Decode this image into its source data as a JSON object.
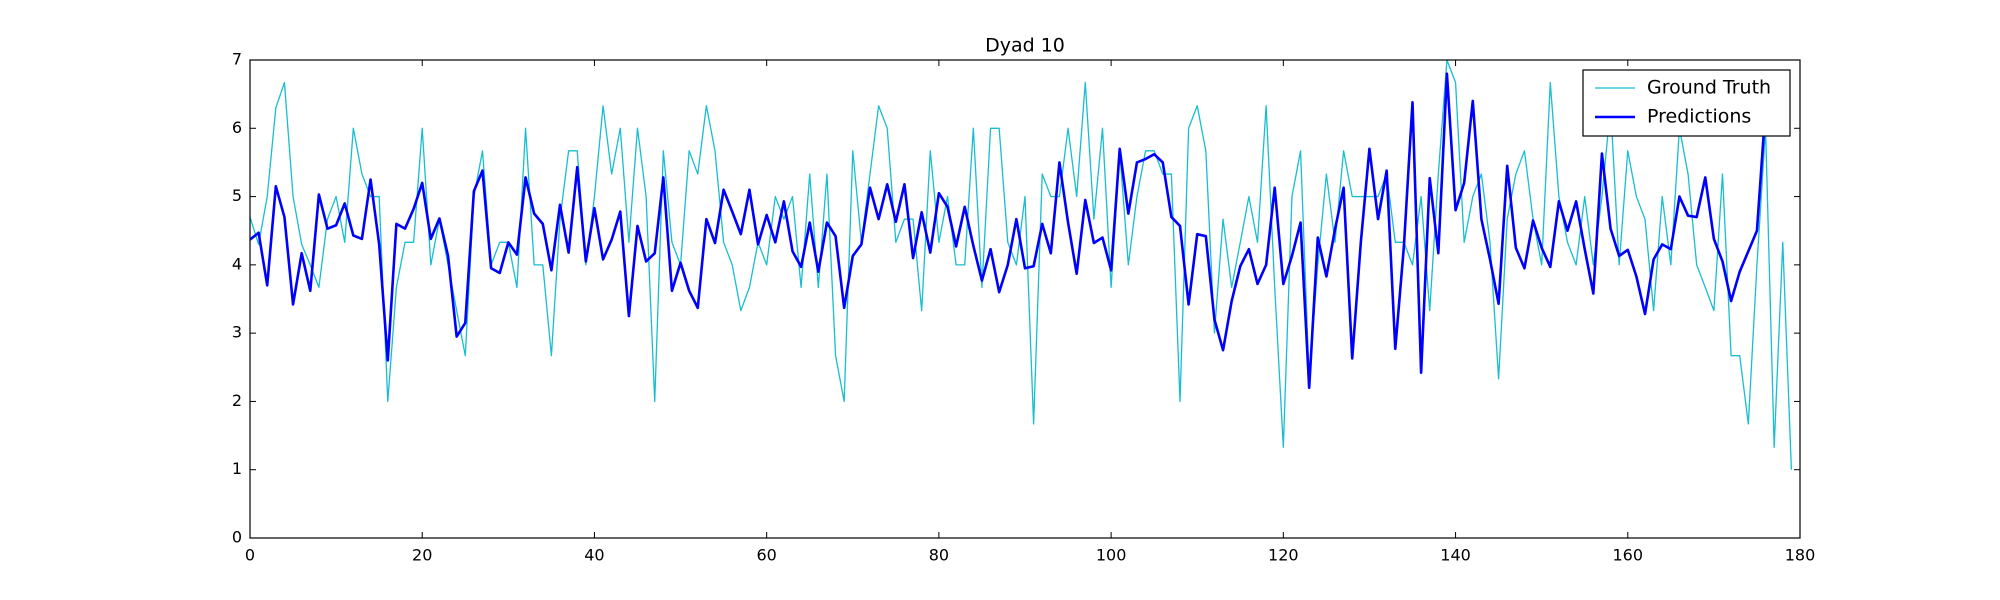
{
  "chart_data": {
    "type": "line",
    "title": "Dyad 10",
    "x": [
      0,
      1,
      2,
      3,
      4,
      5,
      6,
      7,
      8,
      9,
      10,
      11,
      12,
      13,
      14,
      15,
      16,
      17,
      18,
      19,
      20,
      21,
      22,
      23,
      24,
      25,
      26,
      27,
      28,
      29,
      30,
      31,
      32,
      33,
      34,
      35,
      36,
      37,
      38,
      39,
      40,
      41,
      42,
      43,
      44,
      45,
      46,
      47,
      48,
      49,
      50,
      51,
      52,
      53,
      54,
      55,
      56,
      57,
      58,
      59,
      60,
      61,
      62,
      63,
      64,
      65,
      66,
      67,
      68,
      69,
      70,
      71,
      72,
      73,
      74,
      75,
      76,
      77,
      78,
      79,
      80,
      81,
      82,
      83,
      84,
      85,
      86,
      87,
      88,
      89,
      90,
      91,
      92,
      93,
      94,
      95,
      96,
      97,
      98,
      99,
      100,
      101,
      102,
      103,
      104,
      105,
      106,
      107,
      108,
      109,
      110,
      111,
      112,
      113,
      114,
      115,
      116,
      117,
      118,
      119,
      120,
      121,
      122,
      123,
      124,
      125,
      126,
      127,
      128,
      129,
      130,
      131,
      132,
      133,
      134,
      135,
      136,
      137,
      138,
      139,
      140,
      141,
      142,
      143,
      144,
      145,
      146,
      147,
      148,
      149,
      150,
      151,
      152,
      153,
      154,
      155,
      156,
      157,
      158,
      159,
      160,
      161,
      162,
      163,
      164,
      165,
      166,
      167,
      168,
      169,
      170,
      171,
      172,
      173,
      174,
      175,
      176,
      177,
      178,
      179
    ],
    "series": [
      {
        "name": "Ground Truth",
        "color": "#17becf",
        "width": 1.3,
        "values": [
          4.7,
          4.3,
          5.0,
          6.3,
          6.67,
          5.0,
          4.3,
          4.0,
          3.67,
          4.67,
          5.0,
          4.33,
          6.0,
          5.33,
          5.0,
          5.0,
          2.0,
          3.67,
          4.33,
          4.33,
          6.0,
          4.0,
          4.67,
          4.0,
          3.33,
          2.67,
          5.0,
          5.67,
          4.0,
          4.33,
          4.33,
          3.67,
          6.0,
          4.0,
          4.0,
          2.67,
          4.67,
          5.67,
          5.67,
          4.0,
          5.0,
          6.33,
          5.33,
          6.0,
          4.33,
          6.0,
          5.0,
          2.0,
          5.67,
          4.33,
          4.0,
          5.67,
          5.33,
          6.33,
          5.67,
          4.33,
          4.0,
          3.33,
          3.67,
          4.33,
          4.0,
          5.0,
          4.67,
          5.0,
          3.67,
          5.33,
          3.67,
          5.33,
          2.67,
          2.0,
          5.67,
          4.33,
          5.33,
          6.33,
          6.0,
          4.33,
          4.67,
          4.67,
          3.33,
          5.67,
          4.33,
          5.0,
          4.0,
          4.0,
          6.0,
          3.67,
          6.0,
          6.0,
          4.33,
          4.0,
          5.0,
          1.67,
          5.33,
          5.0,
          5.0,
          6.0,
          5.0,
          6.67,
          4.67,
          6.0,
          3.67,
          5.67,
          4.0,
          5.0,
          5.67,
          5.67,
          5.33,
          5.33,
          2.0,
          6.0,
          6.33,
          5.67,
          3.0,
          4.67,
          3.67,
          4.33,
          5.0,
          4.33,
          6.33,
          3.67,
          1.33,
          5.0,
          5.67,
          2.33,
          4.0,
          5.33,
          4.33,
          5.67,
          5.0,
          5.0,
          5.0,
          5.0,
          5.33,
          4.33,
          4.33,
          4.0,
          5.0,
          3.33,
          5.33,
          7.0,
          6.67,
          4.33,
          5.0,
          5.33,
          4.33,
          2.33,
          4.67,
          5.33,
          5.67,
          4.67,
          4.0,
          6.67,
          5.0,
          4.33,
          4.0,
          5.0,
          4.0,
          5.0,
          6.33,
          4.0,
          5.67,
          5.0,
          4.67,
          3.33,
          5.0,
          4.0,
          6.0,
          5.33,
          4.0,
          3.67,
          3.33,
          5.33,
          2.67,
          2.67,
          1.67,
          4.0,
          6.0,
          1.33,
          4.33,
          1.0
        ]
      },
      {
        "name": "Predictions",
        "color": "#0000ff",
        "width": 2.6,
        "values": [
          4.37,
          4.47,
          3.7,
          5.15,
          4.7,
          3.42,
          4.17,
          3.62,
          5.03,
          4.53,
          4.58,
          4.9,
          4.43,
          4.38,
          5.25,
          4.3,
          2.6,
          4.6,
          4.53,
          4.82,
          5.2,
          4.38,
          4.68,
          4.13,
          2.95,
          3.15,
          5.08,
          5.38,
          3.95,
          3.88,
          4.33,
          4.15,
          5.28,
          4.75,
          4.6,
          3.92,
          4.88,
          4.18,
          5.43,
          4.05,
          4.83,
          4.08,
          4.37,
          4.78,
          3.25,
          4.57,
          4.05,
          4.17,
          5.28,
          3.62,
          4.03,
          3.62,
          3.37,
          4.67,
          4.32,
          5.1,
          4.78,
          4.45,
          5.1,
          4.3,
          4.73,
          4.33,
          4.93,
          4.2,
          3.97,
          4.62,
          3.9,
          4.62,
          4.42,
          3.37,
          4.13,
          4.3,
          5.13,
          4.67,
          5.18,
          4.63,
          5.18,
          4.1,
          4.77,
          4.18,
          5.05,
          4.85,
          4.27,
          4.85,
          4.28,
          3.77,
          4.23,
          3.6,
          4.0,
          4.67,
          3.95,
          3.98,
          4.6,
          4.17,
          5.5,
          4.62,
          3.87,
          4.95,
          4.32,
          4.4,
          3.92,
          5.7,
          4.75,
          5.5,
          5.55,
          5.62,
          5.5,
          4.7,
          4.57,
          3.42,
          4.45,
          4.42,
          3.2,
          2.75,
          3.47,
          3.98,
          4.23,
          3.72,
          4.0,
          5.13,
          3.72,
          4.13,
          4.62,
          2.2,
          4.4,
          3.83,
          4.52,
          5.13,
          2.63,
          4.33,
          5.7,
          4.67,
          5.38,
          2.77,
          4.27,
          6.38,
          2.42,
          5.27,
          4.17,
          6.8,
          4.8,
          5.2,
          6.4,
          4.67,
          4.08,
          3.43,
          5.45,
          4.25,
          3.95,
          4.65,
          4.25,
          3.97,
          4.93,
          4.5,
          4.93,
          4.23,
          3.58,
          5.63,
          4.53,
          4.13,
          4.22,
          3.83,
          3.28,
          4.08,
          4.3,
          4.23,
          5.0,
          4.72,
          4.7,
          5.28,
          4.38,
          4.05,
          3.47,
          3.9,
          4.2,
          4.5,
          6.3,
          null,
          null,
          null
        ]
      }
    ],
    "xlim": [
      0,
      180
    ],
    "xticks": [
      0,
      20,
      40,
      60,
      80,
      100,
      120,
      140,
      160,
      180
    ],
    "ylim": [
      0,
      7
    ],
    "yticks": [
      0,
      1,
      2,
      3,
      4,
      5,
      6,
      7
    ],
    "grid": false,
    "legend": "upper right"
  }
}
